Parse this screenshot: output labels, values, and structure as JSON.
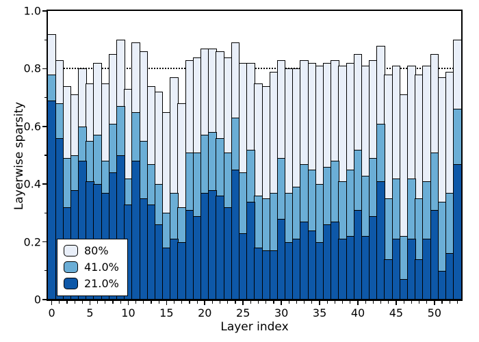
{
  "chart_data": {
    "type": "bar",
    "mode": "overlaid-stack",
    "title": "",
    "xlabel": "Layer index",
    "ylabel": "Layerwise sparsity",
    "xlim": [
      -0.5,
      53.5
    ],
    "ylim": [
      0,
      1.0
    ],
    "xticks": [
      0,
      5,
      10,
      15,
      20,
      25,
      30,
      35,
      40,
      45,
      50
    ],
    "yticks": [
      0,
      0.2,
      0.4,
      0.6,
      0.8,
      1.0
    ],
    "ytick_labels": [
      "0",
      "0.2",
      "0.4",
      "0.6",
      "0.8",
      "1.0"
    ],
    "x_minor_tick_every": 1,
    "y_minor_tick_every": 0.1,
    "grid": false,
    "reference_line": {
      "y": 0.8,
      "style": "dotted",
      "color": "#000000"
    },
    "categories": [
      0,
      1,
      2,
      3,
      4,
      5,
      6,
      7,
      8,
      9,
      10,
      11,
      12,
      13,
      14,
      15,
      16,
      17,
      18,
      19,
      20,
      21,
      22,
      23,
      24,
      25,
      26,
      27,
      28,
      29,
      30,
      31,
      32,
      33,
      34,
      35,
      36,
      37,
      38,
      39,
      40,
      41,
      42,
      43,
      44,
      45,
      46,
      47,
      48,
      49,
      50,
      51,
      52,
      53
    ],
    "series": [
      {
        "name": "80%",
        "color": "#E9EFF9",
        "values": [
          0.92,
          0.83,
          0.74,
          0.71,
          0.8,
          0.75,
          0.82,
          0.75,
          0.85,
          0.9,
          0.73,
          0.89,
          0.86,
          0.74,
          0.72,
          0.65,
          0.77,
          0.68,
          0.83,
          0.84,
          0.87,
          0.87,
          0.86,
          0.84,
          0.89,
          0.82,
          0.82,
          0.75,
          0.74,
          0.79,
          0.83,
          0.8,
          0.8,
          0.83,
          0.82,
          0.81,
          0.82,
          0.83,
          0.81,
          0.82,
          0.85,
          0.81,
          0.83,
          0.88,
          0.78,
          0.81,
          0.71,
          0.81,
          0.78,
          0.81,
          0.85,
          0.77,
          0.79,
          0.9
        ]
      },
      {
        "name": "41.0%",
        "color": "#6BAED6",
        "values": [
          0.78,
          0.68,
          0.49,
          0.5,
          0.6,
          0.55,
          0.57,
          0.48,
          0.61,
          0.67,
          0.42,
          0.65,
          0.55,
          0.47,
          0.4,
          0.3,
          0.37,
          0.32,
          0.51,
          0.51,
          0.57,
          0.58,
          0.56,
          0.51,
          0.63,
          0.44,
          0.52,
          0.36,
          0.35,
          0.37,
          0.49,
          0.37,
          0.39,
          0.47,
          0.45,
          0.4,
          0.46,
          0.48,
          0.41,
          0.45,
          0.52,
          0.43,
          0.49,
          0.61,
          0.35,
          0.42,
          0.22,
          0.42,
          0.35,
          0.41,
          0.51,
          0.34,
          0.37,
          0.66
        ]
      },
      {
        "name": "21.0%",
        "color": "#0E58A8",
        "values": [
          0.69,
          0.56,
          0.32,
          0.38,
          0.48,
          0.41,
          0.4,
          0.37,
          0.44,
          0.5,
          0.33,
          0.48,
          0.35,
          0.33,
          0.26,
          0.18,
          0.21,
          0.2,
          0.31,
          0.29,
          0.37,
          0.38,
          0.36,
          0.32,
          0.45,
          0.23,
          0.34,
          0.18,
          0.17,
          0.17,
          0.28,
          0.2,
          0.21,
          0.27,
          0.24,
          0.2,
          0.26,
          0.27,
          0.21,
          0.22,
          0.31,
          0.22,
          0.29,
          0.41,
          0.14,
          0.21,
          0.07,
          0.21,
          0.14,
          0.21,
          0.31,
          0.1,
          0.16,
          0.47
        ]
      }
    ],
    "legend": {
      "position": "lower-left",
      "entries": [
        "80%",
        "41.0%",
        "21.0%"
      ]
    }
  },
  "axes": {
    "xlabel": "Layer index",
    "ylabel": "Layerwise sparsity"
  },
  "style": {
    "bar_edge_color": "#000000",
    "background": "#ffffff"
  }
}
